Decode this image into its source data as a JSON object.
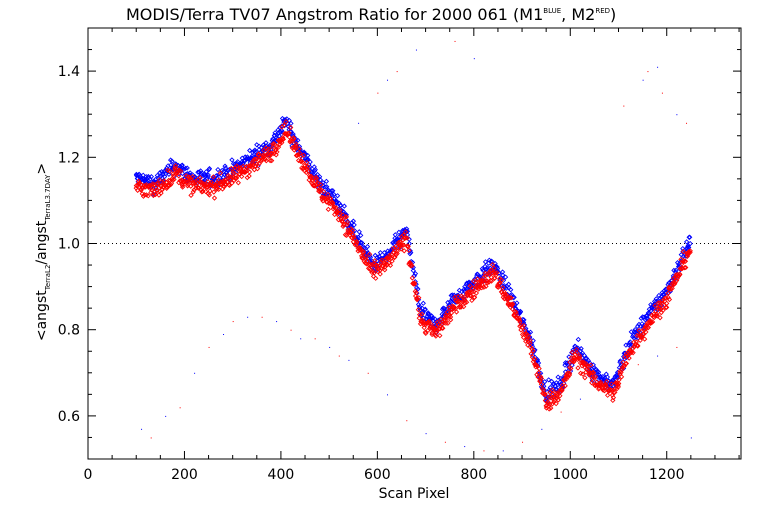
{
  "chart_data": {
    "type": "scatter",
    "title": "MODIS/Terra TV07 Angstrom Ratio for 2000 061 (M1",
    "title_sup1": "BLUE",
    "title_mid": ", M2",
    "title_sup2": "RED",
    "title_end": ")",
    "xlabel": "Scan Pixel",
    "ylabel_main": "<angst",
    "ylabel_sub1": "TerraL2",
    "ylabel_mid": "/angst",
    "ylabel_sub2": "TerraL3.7DAY",
    "ylabel_end": ">",
    "xlim": [
      0,
      1354
    ],
    "ylim": [
      0.5,
      1.5
    ],
    "xticks": [
      0,
      200,
      400,
      600,
      800,
      1000,
      1200
    ],
    "xtick_labels": [
      "0",
      "200",
      "400",
      "600",
      "800",
      "1000",
      "1200"
    ],
    "yticks": [
      0.6,
      0.8,
      1.0,
      1.2,
      1.4
    ],
    "ytick_labels": [
      "0.6",
      "0.8",
      "1.0",
      "1.2",
      "1.4"
    ],
    "reference_line": 1.0,
    "series_styles": [
      {
        "name": "M1",
        "color": "#0000ff"
      },
      {
        "name": "M2",
        "color": "#ff0000"
      }
    ],
    "trend": {
      "x": [
        100,
        140,
        180,
        220,
        260,
        300,
        340,
        380,
        410,
        440,
        480,
        520,
        560,
        590,
        620,
        660,
        690,
        720,
        760,
        800,
        840,
        880,
        920,
        950,
        980,
        1010,
        1050,
        1090,
        1120,
        1160,
        1200,
        1250
      ],
      "y": [
        1.14,
        1.13,
        1.17,
        1.14,
        1.14,
        1.16,
        1.19,
        1.22,
        1.27,
        1.21,
        1.13,
        1.08,
        1.0,
        0.94,
        0.96,
        1.02,
        0.83,
        0.8,
        0.86,
        0.9,
        0.94,
        0.86,
        0.76,
        0.64,
        0.66,
        0.75,
        0.69,
        0.66,
        0.75,
        0.82,
        0.88,
        1.0
      ]
    },
    "scatter_sparse": {
      "x": [
        110,
        130,
        160,
        190,
        220,
        250,
        280,
        300,
        330,
        360,
        390,
        420,
        440,
        470,
        500,
        520,
        540,
        580,
        620,
        660,
        700,
        740,
        780,
        820,
        860,
        900,
        940,
        980,
        1020,
        1060,
        1100,
        1140,
        1180,
        1220,
        560,
        600,
        620,
        640,
        680,
        760,
        800,
        1110,
        1150,
        1160,
        1180,
        1190,
        1220,
        1240,
        1250
      ],
      "y": [
        0.57,
        0.55,
        0.6,
        0.62,
        0.7,
        0.76,
        0.79,
        0.82,
        0.83,
        0.83,
        0.82,
        0.8,
        0.78,
        0.78,
        0.76,
        0.74,
        0.73,
        0.7,
        0.65,
        0.59,
        0.56,
        0.54,
        0.53,
        0.52,
        0.52,
        0.54,
        0.57,
        0.61,
        0.64,
        0.68,
        0.7,
        0.72,
        0.74,
        0.76,
        1.28,
        1.35,
        1.38,
        1.4,
        1.45,
        1.47,
        1.43,
        1.32,
        1.38,
        1.4,
        1.41,
        1.35,
        1.3,
        1.28,
        0.55
      ]
    }
  }
}
